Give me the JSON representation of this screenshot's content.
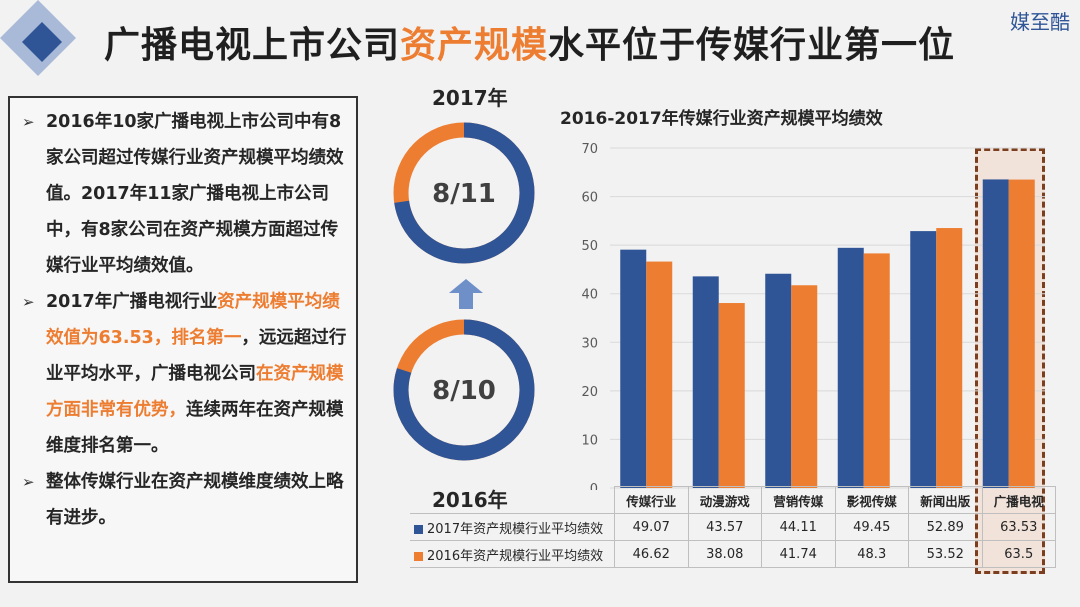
{
  "header": {
    "title_part1": "广播电视上市公司",
    "title_highlight": "资产规模",
    "title_part2": "水平位于传媒行业第一位",
    "watermark": "媒至酷"
  },
  "textbox": {
    "b1": "2016年10家广播电视上市公司中有8家公司超过传媒行业资产规模平均绩效值。2017年11家广播电视上市公司中，有8家公司在资产规模方面超过传媒行业平均绩效值。",
    "b2_pre": "2017年广播电视行业",
    "b2_hl1": "资产规模平均绩效值为63.53，排名第一",
    "b2_mid": "，远远超过行业平均水平，广播电视公司",
    "b2_hl2": "在资产规模方面非常有优势，",
    "b2_post": "连续两年在资产规模维度排名第一。",
    "b3": "整体传媒行业在资产规模维度绩效上略有进步。"
  },
  "donuts": {
    "top_year": "2017年",
    "top_ratio": "8/11",
    "top_num": 8,
    "top_den": 11,
    "bottom_year": "2016年",
    "bottom_ratio": "8/10",
    "bottom_num": 8,
    "bottom_den": 10,
    "color_main": "#2f5597",
    "color_rest": "#ed7d31"
  },
  "chart_data": {
    "type": "bar",
    "title": "2016-2017年传媒行业资产规模平均绩效",
    "categories": [
      "传媒行业",
      "动漫游戏",
      "营销传媒",
      "影视传媒",
      "新闻出版",
      "广播电视"
    ],
    "series": [
      {
        "name": "2017年资产规模行业平均绩效",
        "values": [
          49.07,
          43.57,
          44.11,
          49.45,
          52.89,
          63.53
        ],
        "labels": [
          "49.07",
          "43.57",
          "44.11",
          "49.45",
          "52.89",
          "63.53"
        ],
        "color": "#2f5597"
      },
      {
        "name": "2016年资产规模行业平均绩效",
        "values": [
          46.62,
          38.08,
          41.74,
          48.3,
          53.52,
          63.5
        ],
        "labels": [
          "46.62",
          "38.08",
          "41.74",
          "48.3",
          "53.52",
          "63.5"
        ],
        "color": "#ed7d31"
      }
    ],
    "ylim": [
      0,
      70
    ],
    "yticks": [
      0,
      10,
      20,
      30,
      40,
      50,
      60,
      70
    ],
    "grid": true,
    "highlight_category": "广播电视"
  }
}
